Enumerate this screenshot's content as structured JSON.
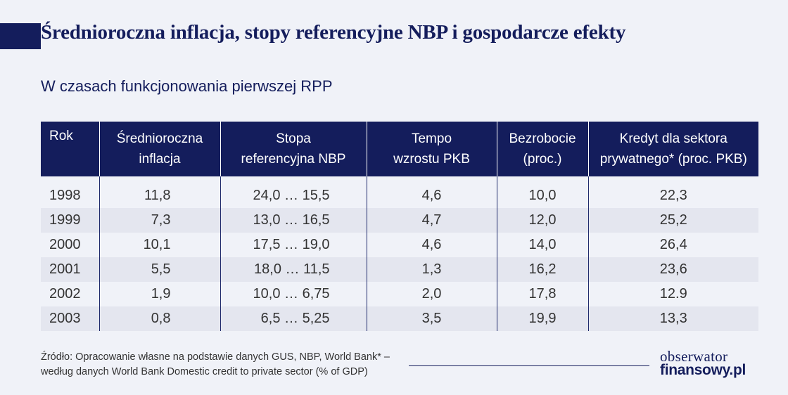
{
  "header": {
    "title": "Średnioroczna inflacja, stopy referencyjne NBP i gospodarcze efekty",
    "subtitle": "W czasach funkcjonowania pierwszej RPP"
  },
  "chart_data": {
    "type": "table",
    "title": "Średnioroczna inflacja, stopy referencyjne NBP i gospodarcze efekty",
    "subtitle": "W czasach funkcjonowania pierwszej RPP",
    "columns": [
      "Rok",
      "Średnioroczna inflacja",
      "Stopa referencyjna NBP",
      "Tempo wzrostu PKB",
      "Bezrobocie (proc.)",
      "Kredyt dla sektora prywatnego* (proc. PKB)"
    ],
    "rows": [
      [
        "1998",
        "11,8",
        "24,0 … 15,5",
        "4,6",
        "10,0",
        "22,3"
      ],
      [
        "1999",
        "7,3",
        "13,0 … 16,5",
        "4,7",
        "12,0",
        "25,2"
      ],
      [
        "2000",
        "10,1",
        "17,5 … 19,0",
        "4,6",
        "14,0",
        "26,4"
      ],
      [
        "2001",
        "5,5",
        "18,0 … 11,5",
        "1,3",
        "16,2",
        "23,6"
      ],
      [
        "2002",
        "1,9",
        "10,0 … 6,75",
        "2,0",
        "17,8",
        "12.9"
      ],
      [
        "2003",
        "0,8",
        "6,5 … 5,25",
        "3,5",
        "19,9",
        "13,3"
      ]
    ]
  },
  "table": {
    "header": [
      {
        "line1": "Rok",
        "line2": ""
      },
      {
        "line1": "Średnioroczna",
        "line2": "inflacja"
      },
      {
        "line1": "Stopa",
        "line2": "referencyjna NBP"
      },
      {
        "line1": "Tempo",
        "line2": "wzrostu PKB"
      },
      {
        "line1": "Bezrobocie",
        "line2": "(proc.)"
      },
      {
        "line1": "Kredyt dla sektora",
        "line2": "prywatnego* (proc. PKB)"
      }
    ]
  },
  "footer": {
    "source_line1": "Źródło: Opracowanie własne na podstawie danych GUS, NBP, World Bank* –",
    "source_line2": "według danych World Bank Domestic credit to private sector (% of GDP)",
    "logo_line1": "obserwator",
    "logo_line2": "finansowy.pl"
  },
  "colors": {
    "accent": "#141d5c",
    "background": "#f0f2f8",
    "stripe": "#e4e6ef"
  }
}
